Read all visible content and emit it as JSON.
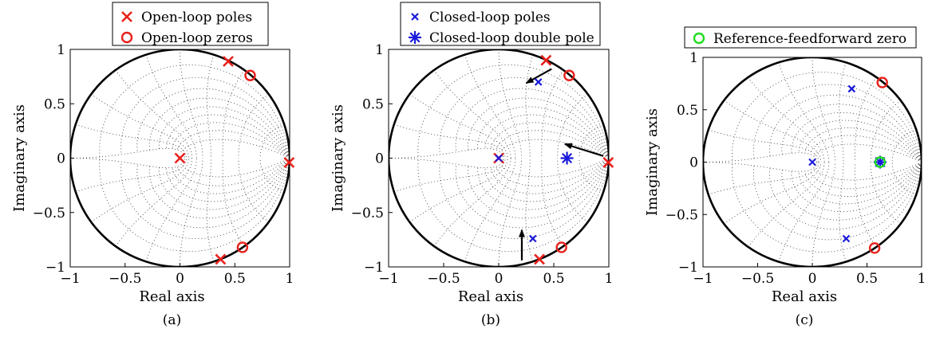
{
  "chart_data": [
    {
      "type": "scatter",
      "panel_label": "(a)",
      "xlabel": "Real axis",
      "ylabel": "Imaginary axis",
      "xlim": [
        -1,
        1
      ],
      "ylim": [
        -1,
        1
      ],
      "xticks": [
        "−1",
        "−0.5",
        "0",
        "0.5",
        "1"
      ],
      "yticks": [
        "1",
        "0.5",
        "0",
        "−0.5",
        "−1"
      ],
      "grid": "zgrid",
      "unit_circle": true,
      "legend_position": "top",
      "series": [
        {
          "name": "Open-loop poles",
          "marker": "cross",
          "color": "#e8211b",
          "points": [
            [
              0,
              0
            ],
            [
              0.44,
              0.89
            ],
            [
              0.37,
              -0.93
            ],
            [
              0.995,
              -0.04
            ]
          ]
        },
        {
          "name": "Open-loop zeros",
          "marker": "circle",
          "color": "#e8211b",
          "points": [
            [
              0.64,
              0.76
            ],
            [
              0.57,
              -0.82
            ]
          ]
        }
      ],
      "arrows": []
    },
    {
      "type": "scatter",
      "panel_label": "(b)",
      "xlabel": "Real axis",
      "ylabel": "Imaginary axis",
      "xlim": [
        -1,
        1
      ],
      "ylim": [
        -1,
        1
      ],
      "xticks": [
        "−1",
        "−0.5",
        "0",
        "0.5",
        "1"
      ],
      "yticks": [
        "1",
        "0.5",
        "0",
        "−0.5",
        "−1"
      ],
      "grid": "zgrid",
      "unit_circle": true,
      "legend_position": "top",
      "series": [
        {
          "name": "",
          "marker": "cross",
          "color": "#e8211b",
          "points": [
            [
              0,
              0
            ],
            [
              0.43,
              0.9
            ],
            [
              0.37,
              -0.93
            ],
            [
              0.995,
              -0.04
            ]
          ]
        },
        {
          "name": "",
          "marker": "circle",
          "color": "#e8211b",
          "points": [
            [
              0.64,
              0.76
            ],
            [
              0.57,
              -0.82
            ]
          ]
        },
        {
          "name": "Closed-loop poles",
          "marker": "xsmall",
          "color": "#1a1adb",
          "points": [
            [
              0.36,
              0.7
            ],
            [
              0.31,
              -0.74
            ],
            [
              0,
              0
            ]
          ]
        },
        {
          "name": "Closed-loop double pole",
          "marker": "asterisk",
          "color": "#1a1adb",
          "points": [
            [
              0.62,
              0
            ]
          ]
        }
      ],
      "arrows": [
        {
          "from": [
            0.48,
            0.82
          ],
          "to": [
            0.25,
            0.69
          ]
        },
        {
          "from": [
            0.95,
            0.02
          ],
          "to": [
            0.6,
            0.13
          ]
        },
        {
          "from": [
            0.21,
            -0.94
          ],
          "to": [
            0.21,
            -0.66
          ]
        }
      ]
    },
    {
      "type": "scatter",
      "panel_label": "(c)",
      "xlabel": "Real axis",
      "ylabel": "Imaginary axis",
      "xlim": [
        -1,
        1
      ],
      "ylim": [
        -1,
        1
      ],
      "xticks": [
        "−1",
        "−0.5",
        "0",
        "0.5",
        "1"
      ],
      "yticks": [
        "1",
        "0.5",
        "0",
        "−0.5",
        "−1"
      ],
      "grid": "zgrid",
      "unit_circle": true,
      "legend_position": "top",
      "series": [
        {
          "name": "",
          "marker": "circle",
          "color": "#e8211b",
          "points": [
            [
              0.64,
              0.76
            ],
            [
              0.57,
              -0.82
            ]
          ]
        },
        {
          "name": "",
          "marker": "xsmall",
          "color": "#1a1adb",
          "points": [
            [
              0.36,
              0.7
            ],
            [
              0.31,
              -0.73
            ],
            [
              0,
              0
            ]
          ]
        },
        {
          "name": "",
          "marker": "asterisk",
          "color": "#1a1adb",
          "points": [
            [
              0.62,
              0
            ]
          ]
        },
        {
          "name": "Reference-feedforward zero",
          "marker": "circle",
          "color": "#22dd22",
          "points": [
            [
              0.62,
              0
            ]
          ]
        }
      ],
      "arrows": []
    }
  ]
}
